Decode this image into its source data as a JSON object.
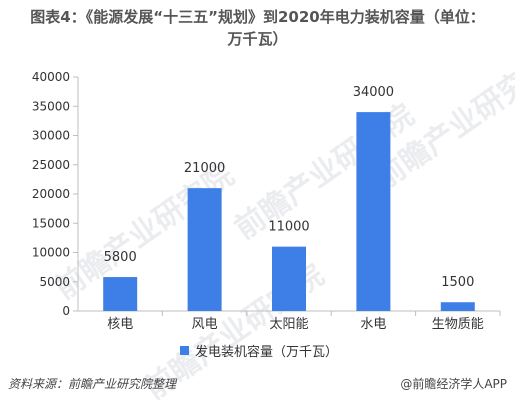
{
  "header": {
    "title_line1": "图表4：《能源发展“十三五”规划》到2020年电力装机容量（单位：",
    "title_line2": "万千瓦）"
  },
  "chart_data": {
    "type": "bar",
    "categories": [
      "核电",
      "风电",
      "太阳能",
      "水电",
      "生物质能"
    ],
    "series": [
      {
        "name": "发电装机容量（万千瓦）",
        "values": [
          5800,
          21000,
          11000,
          34000,
          1500
        ]
      }
    ],
    "data_labels": [
      "5800",
      "21000",
      "11000",
      "34000",
      "1500"
    ],
    "yticks": [
      0,
      5000,
      10000,
      15000,
      20000,
      25000,
      30000,
      35000,
      40000
    ],
    "ylim": [
      0,
      40000
    ],
    "bar_color": "#3d7fe6",
    "legend_position": "bottom"
  },
  "legend": {
    "label": "发电装机容量（万千瓦）"
  },
  "footer": {
    "source": "资料来源：前瞻产业研究院整理",
    "credit": "@前瞻经济学人APP"
  },
  "watermark": {
    "text": "前瞻产业研究院"
  }
}
